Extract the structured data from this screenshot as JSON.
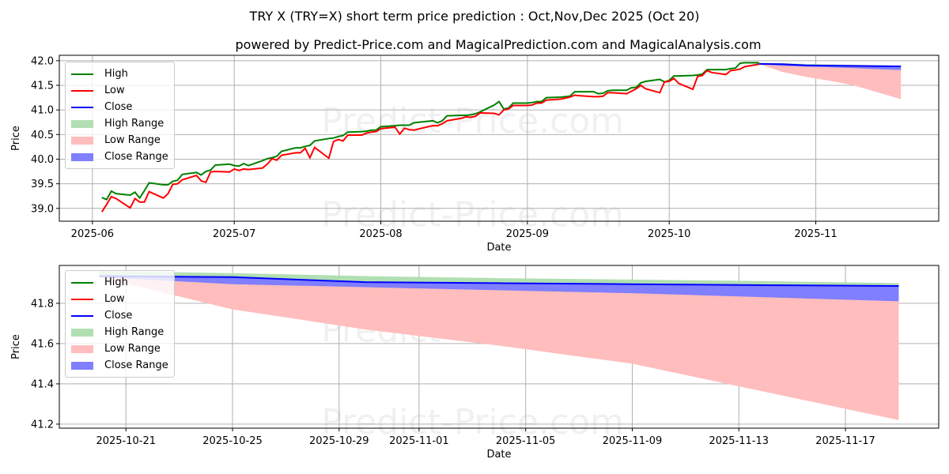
{
  "title": "TRY X (TRY=X) short term price prediction : Oct,Nov,Dec 2025 (Oct 20)",
  "subtitle": "powered by Predict-Price.com and MagicalPrediction.com and MagicalAnalysis.com",
  "watermark": "Predict-Price.com",
  "colors": {
    "high": "#008000",
    "low": "#ff0000",
    "close": "#0000ff",
    "high_range": "#b2dfb2",
    "low_range": "#ffbdbd",
    "close_range": "#7f7fff"
  },
  "legend": [
    "High",
    "Low",
    "Close",
    "High Range",
    "Low Range",
    "Close Range"
  ],
  "chart_data": [
    {
      "type": "line",
      "xlabel": "Date",
      "ylabel": "Price",
      "ylim": [
        38.74,
        42.11
      ],
      "xlim": [
        "2025-05-25",
        "2025-11-27"
      ],
      "grid": true,
      "legend_position": "top-left",
      "yticks": [
        "39.0",
        "39.5",
        "40.0",
        "40.5",
        "41.0",
        "41.5",
        "42.0"
      ],
      "xticks": [
        "2025-06",
        "2025-07",
        "2025-08",
        "2025-09",
        "2025-10",
        "2025-11"
      ],
      "history": {
        "dates": [
          "2025-06-03",
          "2025-06-04",
          "2025-06-05",
          "2025-06-06",
          "2025-06-09",
          "2025-06-10",
          "2025-06-11",
          "2025-06-12",
          "2025-06-13",
          "2025-06-16",
          "2025-06-17",
          "2025-06-18",
          "2025-06-19",
          "2025-06-20",
          "2025-06-23",
          "2025-06-24",
          "2025-06-25",
          "2025-06-26",
          "2025-06-27",
          "2025-06-30",
          "2025-07-01",
          "2025-07-02",
          "2025-07-03",
          "2025-07-04",
          "2025-07-07",
          "2025-07-08",
          "2025-07-09",
          "2025-07-10",
          "2025-07-11",
          "2025-07-14",
          "2025-07-15",
          "2025-07-16",
          "2025-07-17",
          "2025-07-18",
          "2025-07-21",
          "2025-07-22",
          "2025-07-23",
          "2025-07-24",
          "2025-07-25",
          "2025-07-28",
          "2025-07-29",
          "2025-07-30",
          "2025-07-31",
          "2025-08-01",
          "2025-08-04",
          "2025-08-05",
          "2025-08-06",
          "2025-08-07",
          "2025-08-08",
          "2025-08-11",
          "2025-08-12",
          "2025-08-13",
          "2025-08-14",
          "2025-08-15",
          "2025-08-18",
          "2025-08-19",
          "2025-08-20",
          "2025-08-21",
          "2025-08-22",
          "2025-08-25",
          "2025-08-26",
          "2025-08-27",
          "2025-08-28",
          "2025-08-29",
          "2025-09-01",
          "2025-09-02",
          "2025-09-03",
          "2025-09-04",
          "2025-09-05",
          "2025-09-08",
          "2025-09-09",
          "2025-09-10",
          "2025-09-11",
          "2025-09-12",
          "2025-09-15",
          "2025-09-16",
          "2025-09-17",
          "2025-09-18",
          "2025-09-19",
          "2025-09-22",
          "2025-09-23",
          "2025-09-24",
          "2025-09-25",
          "2025-09-26",
          "2025-09-29",
          "2025-09-30",
          "2025-10-01",
          "2025-10-02",
          "2025-10-03",
          "2025-10-06",
          "2025-10-07",
          "2025-10-08",
          "2025-10-09",
          "2025-10-10",
          "2025-10-13",
          "2025-10-14",
          "2025-10-15",
          "2025-10-16",
          "2025-10-17",
          "2025-10-20"
        ],
        "high": [
          39.22,
          39.18,
          39.35,
          39.3,
          39.27,
          39.33,
          39.21,
          39.36,
          39.52,
          39.48,
          39.48,
          39.55,
          39.57,
          39.69,
          39.73,
          39.68,
          39.75,
          39.78,
          39.88,
          39.9,
          39.87,
          39.86,
          39.91,
          39.87,
          39.97,
          40.01,
          40.03,
          40.06,
          40.16,
          40.23,
          40.23,
          40.26,
          40.28,
          40.37,
          40.42,
          40.43,
          40.46,
          40.48,
          40.55,
          40.56,
          40.57,
          40.59,
          40.59,
          40.66,
          40.68,
          40.69,
          40.69,
          40.69,
          40.74,
          40.77,
          40.78,
          40.74,
          40.78,
          40.88,
          40.89,
          40.89,
          40.9,
          40.92,
          40.96,
          41.1,
          41.17,
          41.02,
          41.04,
          41.14,
          41.14,
          41.15,
          41.17,
          41.17,
          41.25,
          41.26,
          41.27,
          41.28,
          41.37,
          41.37,
          41.37,
          41.33,
          41.34,
          41.39,
          41.4,
          41.4,
          41.45,
          41.46,
          41.55,
          41.58,
          41.62,
          41.57,
          41.6,
          41.69,
          41.69,
          41.7,
          41.71,
          41.73,
          41.82,
          41.82,
          41.82,
          41.84,
          41.85,
          41.95,
          41.96,
          41.96
        ],
        "low": [
          38.93,
          39.08,
          39.24,
          39.2,
          39.01,
          39.2,
          39.13,
          39.13,
          39.34,
          39.21,
          39.3,
          39.49,
          39.5,
          39.58,
          39.67,
          39.56,
          39.53,
          39.74,
          39.75,
          39.74,
          39.8,
          39.77,
          39.8,
          39.79,
          39.82,
          39.9,
          40.01,
          39.98,
          40.08,
          40.13,
          40.13,
          40.22,
          40.03,
          40.24,
          40.02,
          40.36,
          40.4,
          40.37,
          40.49,
          40.49,
          40.53,
          40.55,
          40.56,
          40.62,
          40.65,
          40.51,
          40.63,
          40.6,
          40.59,
          40.66,
          40.68,
          40.68,
          40.72,
          40.78,
          40.83,
          40.86,
          40.85,
          40.87,
          40.94,
          40.93,
          40.9,
          41.0,
          41.02,
          41.09,
          41.09,
          41.1,
          41.14,
          41.14,
          41.2,
          41.22,
          41.24,
          41.26,
          41.3,
          41.29,
          41.27,
          41.27,
          41.28,
          41.35,
          41.35,
          41.33,
          41.38,
          41.43,
          41.5,
          41.43,
          41.35,
          41.57,
          41.58,
          41.64,
          41.54,
          41.42,
          41.68,
          41.7,
          41.8,
          41.76,
          41.72,
          41.8,
          41.81,
          41.83,
          41.88,
          41.93
        ]
      }
    },
    {
      "type": "area",
      "xlabel": "Date",
      "ylabel": "Price",
      "ylim": [
        41.18,
        41.988
      ],
      "xlim": [
        "2025-10-18T12:00",
        "2025-11-20T12:00"
      ],
      "grid": true,
      "legend_position": "top-left",
      "yticks": [
        "41.2",
        "41.4",
        "41.6",
        "41.8"
      ],
      "xticks": [
        "2025-10-21",
        "2025-10-25",
        "2025-10-29",
        "2025-11-01",
        "2025-11-05",
        "2025-11-09",
        "2025-11-13",
        "2025-11-17"
      ],
      "forecast": {
        "dates": [
          "2025-10-20",
          "2025-10-25",
          "2025-10-30",
          "2025-11-04",
          "2025-11-09",
          "2025-11-14",
          "2025-11-19"
        ],
        "close": [
          41.935,
          41.93,
          41.905,
          41.9,
          41.895,
          41.89,
          41.886
        ],
        "high_upper": [
          41.96,
          41.95,
          41.935,
          41.925,
          41.918,
          41.91,
          41.9
        ],
        "close_lower": [
          41.93,
          41.895,
          41.88,
          41.865,
          41.85,
          41.83,
          41.81
        ],
        "low_lower": [
          41.93,
          41.77,
          41.67,
          41.59,
          41.5,
          41.36,
          41.22
        ]
      }
    }
  ]
}
